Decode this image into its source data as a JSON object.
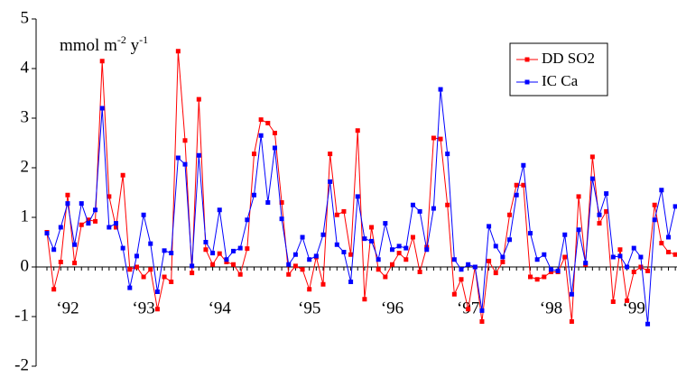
{
  "chart_data": {
    "type": "line",
    "annotation": [
      "mmol m",
      "-2",
      " y",
      "-1"
    ],
    "categories": [
      null,
      null,
      null,
      "‘92",
      null,
      null,
      null,
      null,
      null,
      null,
      null,
      null,
      null,
      null,
      "‘93",
      null,
      null,
      null,
      null,
      null,
      null,
      null,
      null,
      null,
      null,
      "‘94",
      null,
      null,
      null,
      null,
      null,
      null,
      null,
      null,
      null,
      null,
      null,
      null,
      "‘95",
      null,
      null,
      null,
      null,
      null,
      null,
      null,
      null,
      null,
      null,
      null,
      "‘96",
      null,
      null,
      null,
      null,
      null,
      null,
      null,
      null,
      null,
      null,
      "‘97",
      null,
      null,
      null,
      null,
      null,
      null,
      null,
      null,
      null,
      null,
      null,
      "‘98",
      null,
      null,
      null,
      null,
      null,
      null,
      null,
      null,
      null,
      null,
      null,
      "‘99",
      null,
      null,
      null,
      null,
      null,
      null
    ],
    "series": [
      {
        "name": "DD SO2",
        "color": "#ff0000",
        "values": [
          0.7,
          -0.45,
          0.1,
          1.45,
          0.08,
          0.85,
          0.95,
          0.92,
          4.15,
          1.42,
          0.8,
          1.85,
          -0.05,
          0.0,
          -0.2,
          -0.05,
          -0.85,
          -0.2,
          -0.3,
          4.35,
          2.55,
          -0.12,
          3.38,
          0.35,
          0.05,
          0.27,
          0.1,
          0.05,
          -0.15,
          0.37,
          2.28,
          2.97,
          2.9,
          2.7,
          1.3,
          -0.15,
          0.02,
          -0.05,
          -0.45,
          0.2,
          -0.35,
          2.28,
          1.05,
          1.12,
          0.25,
          2.75,
          -0.65,
          0.8,
          -0.05,
          -0.2,
          0.05,
          0.28,
          0.15,
          0.6,
          -0.1,
          0.4,
          2.6,
          2.58,
          1.25,
          -0.55,
          -0.25,
          -0.85,
          0.0,
          -1.1,
          0.12,
          -0.12,
          0.1,
          1.05,
          1.65,
          1.65,
          -0.2,
          -0.25,
          -0.2,
          -0.1,
          -0.1,
          0.2,
          -1.1,
          1.42,
          0.05,
          2.22,
          0.88,
          1.12,
          -0.7,
          0.35,
          -0.68,
          -0.1,
          0.0,
          -0.08,
          1.25,
          0.48,
          0.3,
          0.25
        ]
      },
      {
        "name": "IC Ca",
        "color": "#0000ff",
        "values": [
          0.68,
          0.35,
          0.8,
          1.28,
          0.45,
          1.28,
          0.88,
          1.15,
          3.2,
          0.8,
          0.88,
          0.38,
          -0.42,
          0.22,
          1.05,
          0.47,
          -0.5,
          0.33,
          0.28,
          2.2,
          2.07,
          0.02,
          2.25,
          0.5,
          0.28,
          1.15,
          0.15,
          0.32,
          0.38,
          0.95,
          1.45,
          2.65,
          1.3,
          2.4,
          0.97,
          0.05,
          0.25,
          0.6,
          0.15,
          0.22,
          0.65,
          1.72,
          0.45,
          0.3,
          -0.3,
          1.42,
          0.57,
          0.52,
          0.15,
          0.88,
          0.35,
          0.42,
          0.38,
          1.25,
          1.12,
          0.35,
          1.18,
          3.58,
          2.28,
          0.15,
          -0.05,
          0.05,
          0.0,
          -0.88,
          0.82,
          0.42,
          0.2,
          0.55,
          1.45,
          2.05,
          0.68,
          0.15,
          0.25,
          -0.05,
          -0.08,
          0.65,
          -0.55,
          0.75,
          0.08,
          1.78,
          1.05,
          1.48,
          0.2,
          0.22,
          0.0,
          0.38,
          0.2,
          -1.15,
          0.95,
          1.55,
          0.6,
          1.22
        ]
      }
    ],
    "ylim": [
      -2,
      5
    ],
    "yticks": [
      -2,
      -1,
      0,
      1,
      2,
      3,
      4,
      5
    ],
    "grid": false,
    "legend": "upper-right"
  }
}
